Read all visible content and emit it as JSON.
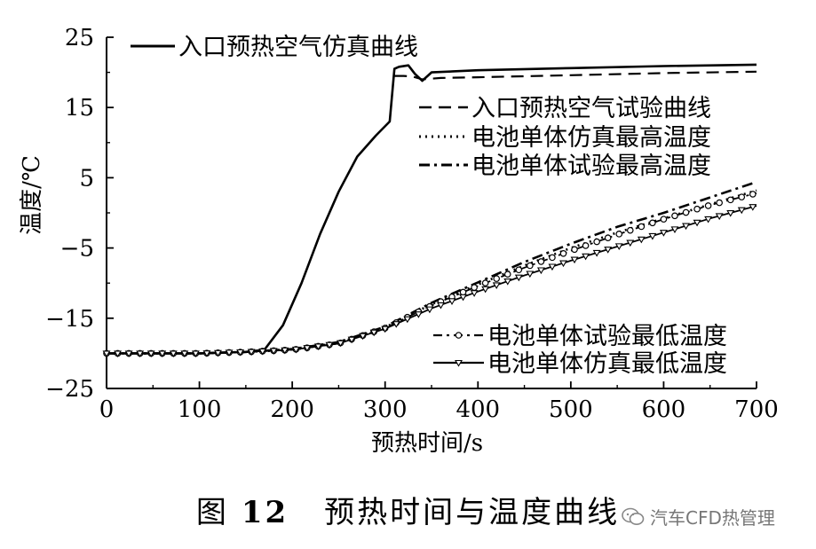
{
  "chart_data": {
    "type": "line",
    "title": "",
    "xlabel": "预热时间/s",
    "ylabel": "温度/℃",
    "xlim": [
      0,
      700
    ],
    "ylim": [
      -25,
      25
    ],
    "xticks": [
      0,
      100,
      200,
      300,
      400,
      500,
      600,
      700
    ],
    "yticks": [
      -25,
      -15,
      -5,
      5,
      15,
      25
    ],
    "ytick_labels": [
      "−25",
      "−15",
      "−5",
      "5",
      "15",
      "25"
    ],
    "series": [
      {
        "name": "入口预热空气仿真曲线",
        "style": "solid",
        "x": [
          0,
          100,
          150,
          170,
          190,
          210,
          230,
          250,
          270,
          290,
          305,
          310,
          315,
          325,
          332,
          340,
          350,
          400,
          500,
          600,
          700
        ],
        "y": [
          -20,
          -20,
          -19.8,
          -19.5,
          -16,
          -10,
          -3,
          3,
          8,
          11,
          13,
          20.5,
          20.8,
          21,
          19.8,
          18.8,
          20,
          20.3,
          20.6,
          20.9,
          21.1
        ]
      },
      {
        "name": "入口预热空气试验曲线",
        "style": "dashed",
        "x": [
          310,
          320,
          330,
          340,
          360,
          400,
          500,
          600,
          700
        ],
        "y": [
          19.5,
          19.5,
          19.4,
          19,
          19.2,
          19.3,
          19.6,
          19.9,
          20.1
        ]
      },
      {
        "name": "电池单体仿真最高温度",
        "style": "dotted",
        "x": [
          0,
          100,
          150,
          200,
          250,
          300,
          350,
          400,
          450,
          500,
          550,
          600,
          650,
          700
        ],
        "y": [
          -20,
          -20,
          -19.8,
          -19.5,
          -18.5,
          -16.3,
          -13,
          -10.2,
          -7.5,
          -5,
          -2.8,
          -0.8,
          1.2,
          3.2
        ]
      },
      {
        "name": "电池单体试验最高温度",
        "style": "dashdot",
        "x": [
          0,
          100,
          150,
          200,
          250,
          300,
          350,
          400,
          450,
          500,
          550,
          600,
          650,
          700
        ],
        "y": [
          -20,
          -20,
          -19.8,
          -19.4,
          -18.4,
          -16.2,
          -12.8,
          -9.9,
          -7,
          -4.4,
          -2,
          0,
          2.2,
          4.4
        ]
      },
      {
        "name": "电池单体试验最低温度",
        "style": "dashdot-circle",
        "x": [
          0,
          100,
          150,
          200,
          250,
          300,
          350,
          400,
          450,
          500,
          550,
          600,
          650,
          700
        ],
        "y": [
          -20,
          -20,
          -19.8,
          -19.5,
          -18.6,
          -16.4,
          -13.2,
          -10.4,
          -7.8,
          -5.4,
          -3.1,
          -0.9,
          1.1,
          2.8
        ]
      },
      {
        "name": "电池单体仿真最低温度",
        "style": "solid-triangle",
        "x": [
          0,
          100,
          150,
          200,
          250,
          300,
          350,
          400,
          450,
          500,
          550,
          600,
          650,
          700
        ],
        "y": [
          -20,
          -20,
          -19.8,
          -19.5,
          -18.6,
          -16.5,
          -13.6,
          -11.2,
          -8.9,
          -6.8,
          -4.8,
          -2.8,
          -0.8,
          1
        ]
      }
    ]
  },
  "caption": {
    "label": "图",
    "number": "12",
    "text": "预热时间与温度曲线"
  },
  "watermark": {
    "text": "汽车CFD热管理"
  }
}
